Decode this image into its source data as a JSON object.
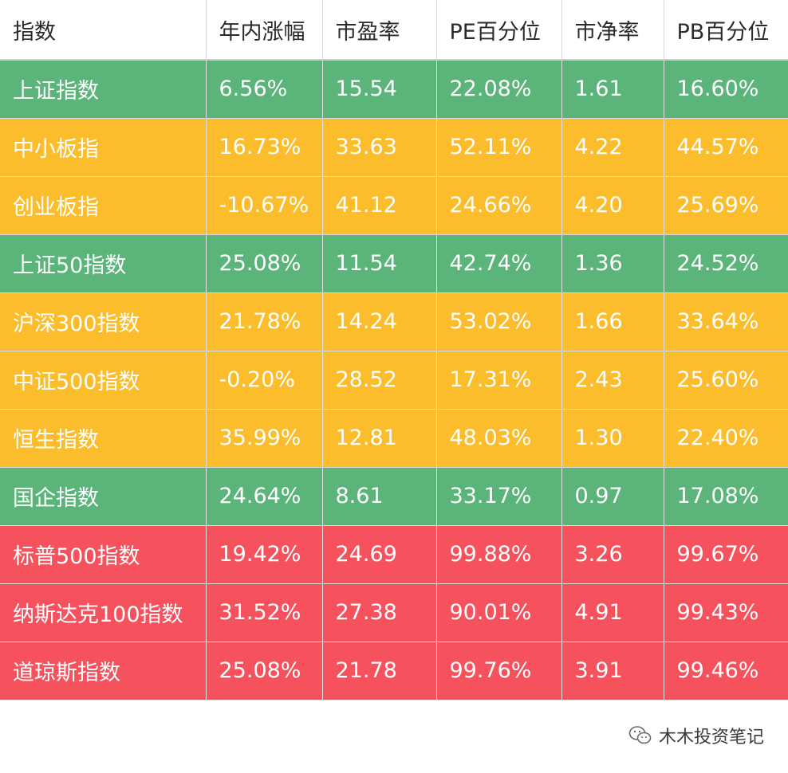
{
  "table": {
    "headers": [
      "指数",
      "年内涨幅",
      "市盈率",
      "PE百分位",
      "市净率",
      "PB百分位"
    ],
    "rows": [
      {
        "color": "green",
        "cells": [
          "上证指数",
          "6.56%",
          "15.54",
          "22.08%",
          "1.61",
          "16.60%"
        ]
      },
      {
        "color": "yellow",
        "cells": [
          "中小板指",
          "16.73%",
          "33.63",
          "52.11%",
          "4.22",
          "44.57%"
        ]
      },
      {
        "color": "yellow",
        "cells": [
          "创业板指",
          "-10.67%",
          "41.12",
          "24.66%",
          "4.20",
          "25.69%"
        ]
      },
      {
        "color": "green",
        "cells": [
          "上证50指数",
          "25.08%",
          "11.54",
          "42.74%",
          "1.36",
          "24.52%"
        ]
      },
      {
        "color": "yellow",
        "cells": [
          "沪深300指数",
          "21.78%",
          "14.24",
          "53.02%",
          "1.66",
          "33.64%"
        ]
      },
      {
        "color": "yellow",
        "cells": [
          "中证500指数",
          "-0.20%",
          "28.52",
          "17.31%",
          "2.43",
          "25.60%"
        ]
      },
      {
        "color": "yellow",
        "cells": [
          "恒生指数",
          "35.99%",
          "12.81",
          "48.03%",
          "1.30",
          "22.40%"
        ]
      },
      {
        "color": "green",
        "cells": [
          "国企指数",
          "24.64%",
          "8.61",
          "33.17%",
          "0.97",
          "17.08%"
        ]
      },
      {
        "color": "red",
        "cells": [
          "标普500指数",
          "19.42%",
          "24.69",
          "99.88%",
          "3.26",
          "99.67%"
        ]
      },
      {
        "color": "red",
        "cells": [
          "纳斯达克100指数",
          "31.52%",
          "27.38",
          "90.01%",
          "4.91",
          "99.43%"
        ]
      },
      {
        "color": "red",
        "cells": [
          "道琼斯指数",
          "25.08%",
          "21.78",
          "99.76%",
          "3.91",
          "99.46%"
        ]
      }
    ]
  },
  "colors": {
    "green": "#5bb57a",
    "yellow": "#fbbd2b",
    "red": "#f6525e"
  },
  "watermark": {
    "icon": "wechat-icon",
    "text": "木木投资笔记"
  }
}
